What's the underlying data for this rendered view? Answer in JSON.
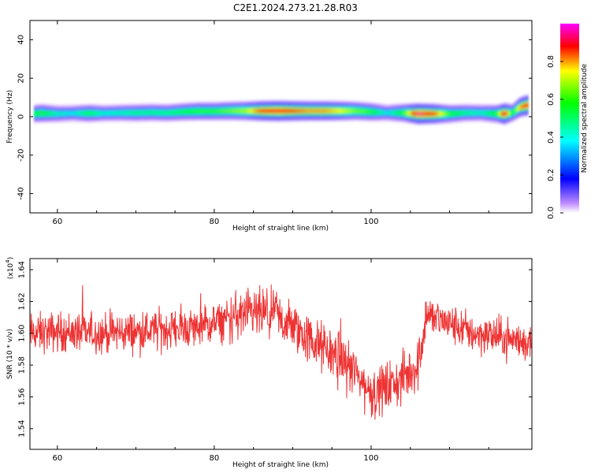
{
  "title": "C2E1.2024.273.21.28.R03",
  "colors": {
    "line": "#ee3333",
    "background": "#ffffff",
    "axis": "#000000"
  },
  "chart_data": [
    {
      "type": "heatmap",
      "xlabel": "Height of straight line (km)",
      "ylabel": "Frequency (Hz)",
      "xlim": [
        56.5,
        120.5
      ],
      "ylim": [
        -50,
        50
      ],
      "xticks": [
        "60",
        "80",
        "100"
      ],
      "yticks": [
        "40",
        "20",
        "0",
        "-20",
        "-40"
      ],
      "ytick_values": [
        40,
        20,
        0,
        -20,
        -40
      ],
      "xtick_values": [
        60,
        80,
        100
      ],
      "colorbar": {
        "label": "Normalized spectral amplitude",
        "range": [
          0,
          1
        ],
        "ticks": [
          "0.0",
          "0.2",
          "0.4",
          "0.6",
          "0.8"
        ],
        "tick_values": [
          0.0,
          0.2,
          0.4,
          0.6,
          0.8
        ]
      },
      "ridge": [
        {
          "x": 57,
          "f": 1.5,
          "amp": 0.55
        },
        {
          "x": 58,
          "f": 1.8,
          "amp": 0.6
        },
        {
          "x": 60,
          "f": 1.5,
          "amp": 0.45
        },
        {
          "x": 62,
          "f": 1.8,
          "amp": 0.4
        },
        {
          "x": 64,
          "f": 1.8,
          "amp": 0.55
        },
        {
          "x": 66,
          "f": 1.8,
          "amp": 0.42
        },
        {
          "x": 68,
          "f": 2.0,
          "amp": 0.45
        },
        {
          "x": 70,
          "f": 2.0,
          "amp": 0.5
        },
        {
          "x": 72,
          "f": 2.2,
          "amp": 0.5
        },
        {
          "x": 74,
          "f": 2.0,
          "amp": 0.5
        },
        {
          "x": 76,
          "f": 2.5,
          "amp": 0.55
        },
        {
          "x": 78,
          "f": 2.8,
          "amp": 0.6
        },
        {
          "x": 80,
          "f": 2.8,
          "amp": 0.6
        },
        {
          "x": 82,
          "f": 3.0,
          "amp": 0.65
        },
        {
          "x": 84,
          "f": 3.0,
          "amp": 0.7
        },
        {
          "x": 86,
          "f": 3.0,
          "amp": 0.85
        },
        {
          "x": 88,
          "f": 3.0,
          "amp": 0.9
        },
        {
          "x": 90,
          "f": 3.0,
          "amp": 0.85
        },
        {
          "x": 92,
          "f": 3.0,
          "amp": 0.8
        },
        {
          "x": 94,
          "f": 3.0,
          "amp": 0.8
        },
        {
          "x": 96,
          "f": 3.0,
          "amp": 0.75
        },
        {
          "x": 98,
          "f": 3.0,
          "amp": 0.65
        },
        {
          "x": 100,
          "f": 2.5,
          "amp": 0.6
        },
        {
          "x": 102,
          "f": 2.0,
          "amp": 0.4
        },
        {
          "x": 104,
          "f": 2.0,
          "amp": 0.6
        },
        {
          "x": 106,
          "f": 1.5,
          "amp": 0.95
        },
        {
          "x": 108,
          "f": 1.5,
          "amp": 0.85
        },
        {
          "x": 110,
          "f": 1.5,
          "amp": 0.6
        },
        {
          "x": 112,
          "f": 2.0,
          "amp": 0.5
        },
        {
          "x": 114,
          "f": 2.0,
          "amp": 0.45
        },
        {
          "x": 116,
          "f": 1.5,
          "amp": 0.6
        },
        {
          "x": 117,
          "f": 1.5,
          "amp": 0.95
        },
        {
          "x": 118,
          "f": 2.0,
          "amp": 0.55
        },
        {
          "x": 119,
          "f": 5.0,
          "amp": 0.8
        },
        {
          "x": 120,
          "f": 6.0,
          "amp": 0.9
        }
      ]
    },
    {
      "type": "line",
      "xlabel": "Height of straight line (km)",
      "ylabel": "SNR (10 * v/v)",
      "yscale_label": "(x10",
      "yscale_exponent": "4",
      "yscale_close": ")",
      "xlim": [
        56.5,
        120.5
      ],
      "ylim": [
        1.527,
        1.647
      ],
      "xticks": [
        "60",
        "80",
        "100"
      ],
      "xtick_values": [
        60,
        80,
        100
      ],
      "yticks": [
        "1.64",
        "1.62",
        "1.60",
        "1.58",
        "1.56",
        "1.54"
      ],
      "ytick_values": [
        1.64,
        1.62,
        1.6,
        1.58,
        1.56,
        1.54
      ],
      "series": [
        {
          "trend": [
            {
              "x": 57,
              "y": 1.6
            },
            {
              "x": 60,
              "y": 1.601
            },
            {
              "x": 65,
              "y": 1.6
            },
            {
              "x": 70,
              "y": 1.601
            },
            {
              "x": 75,
              "y": 1.603
            },
            {
              "x": 78,
              "y": 1.604
            },
            {
              "x": 80,
              "y": 1.606
            },
            {
              "x": 83,
              "y": 1.611
            },
            {
              "x": 86,
              "y": 1.612
            },
            {
              "x": 88,
              "y": 1.61
            },
            {
              "x": 90,
              "y": 1.604
            },
            {
              "x": 93,
              "y": 1.593
            },
            {
              "x": 96,
              "y": 1.585
            },
            {
              "x": 98,
              "y": 1.575
            },
            {
              "x": 100,
              "y": 1.562
            },
            {
              "x": 102,
              "y": 1.566
            },
            {
              "x": 104,
              "y": 1.571
            },
            {
              "x": 106,
              "y": 1.58
            },
            {
              "x": 107,
              "y": 1.612
            },
            {
              "x": 110,
              "y": 1.606
            },
            {
              "x": 113,
              "y": 1.6
            },
            {
              "x": 116,
              "y": 1.598
            },
            {
              "x": 120,
              "y": 1.594
            }
          ],
          "noise_amplitude": 0.009
        }
      ]
    }
  ]
}
